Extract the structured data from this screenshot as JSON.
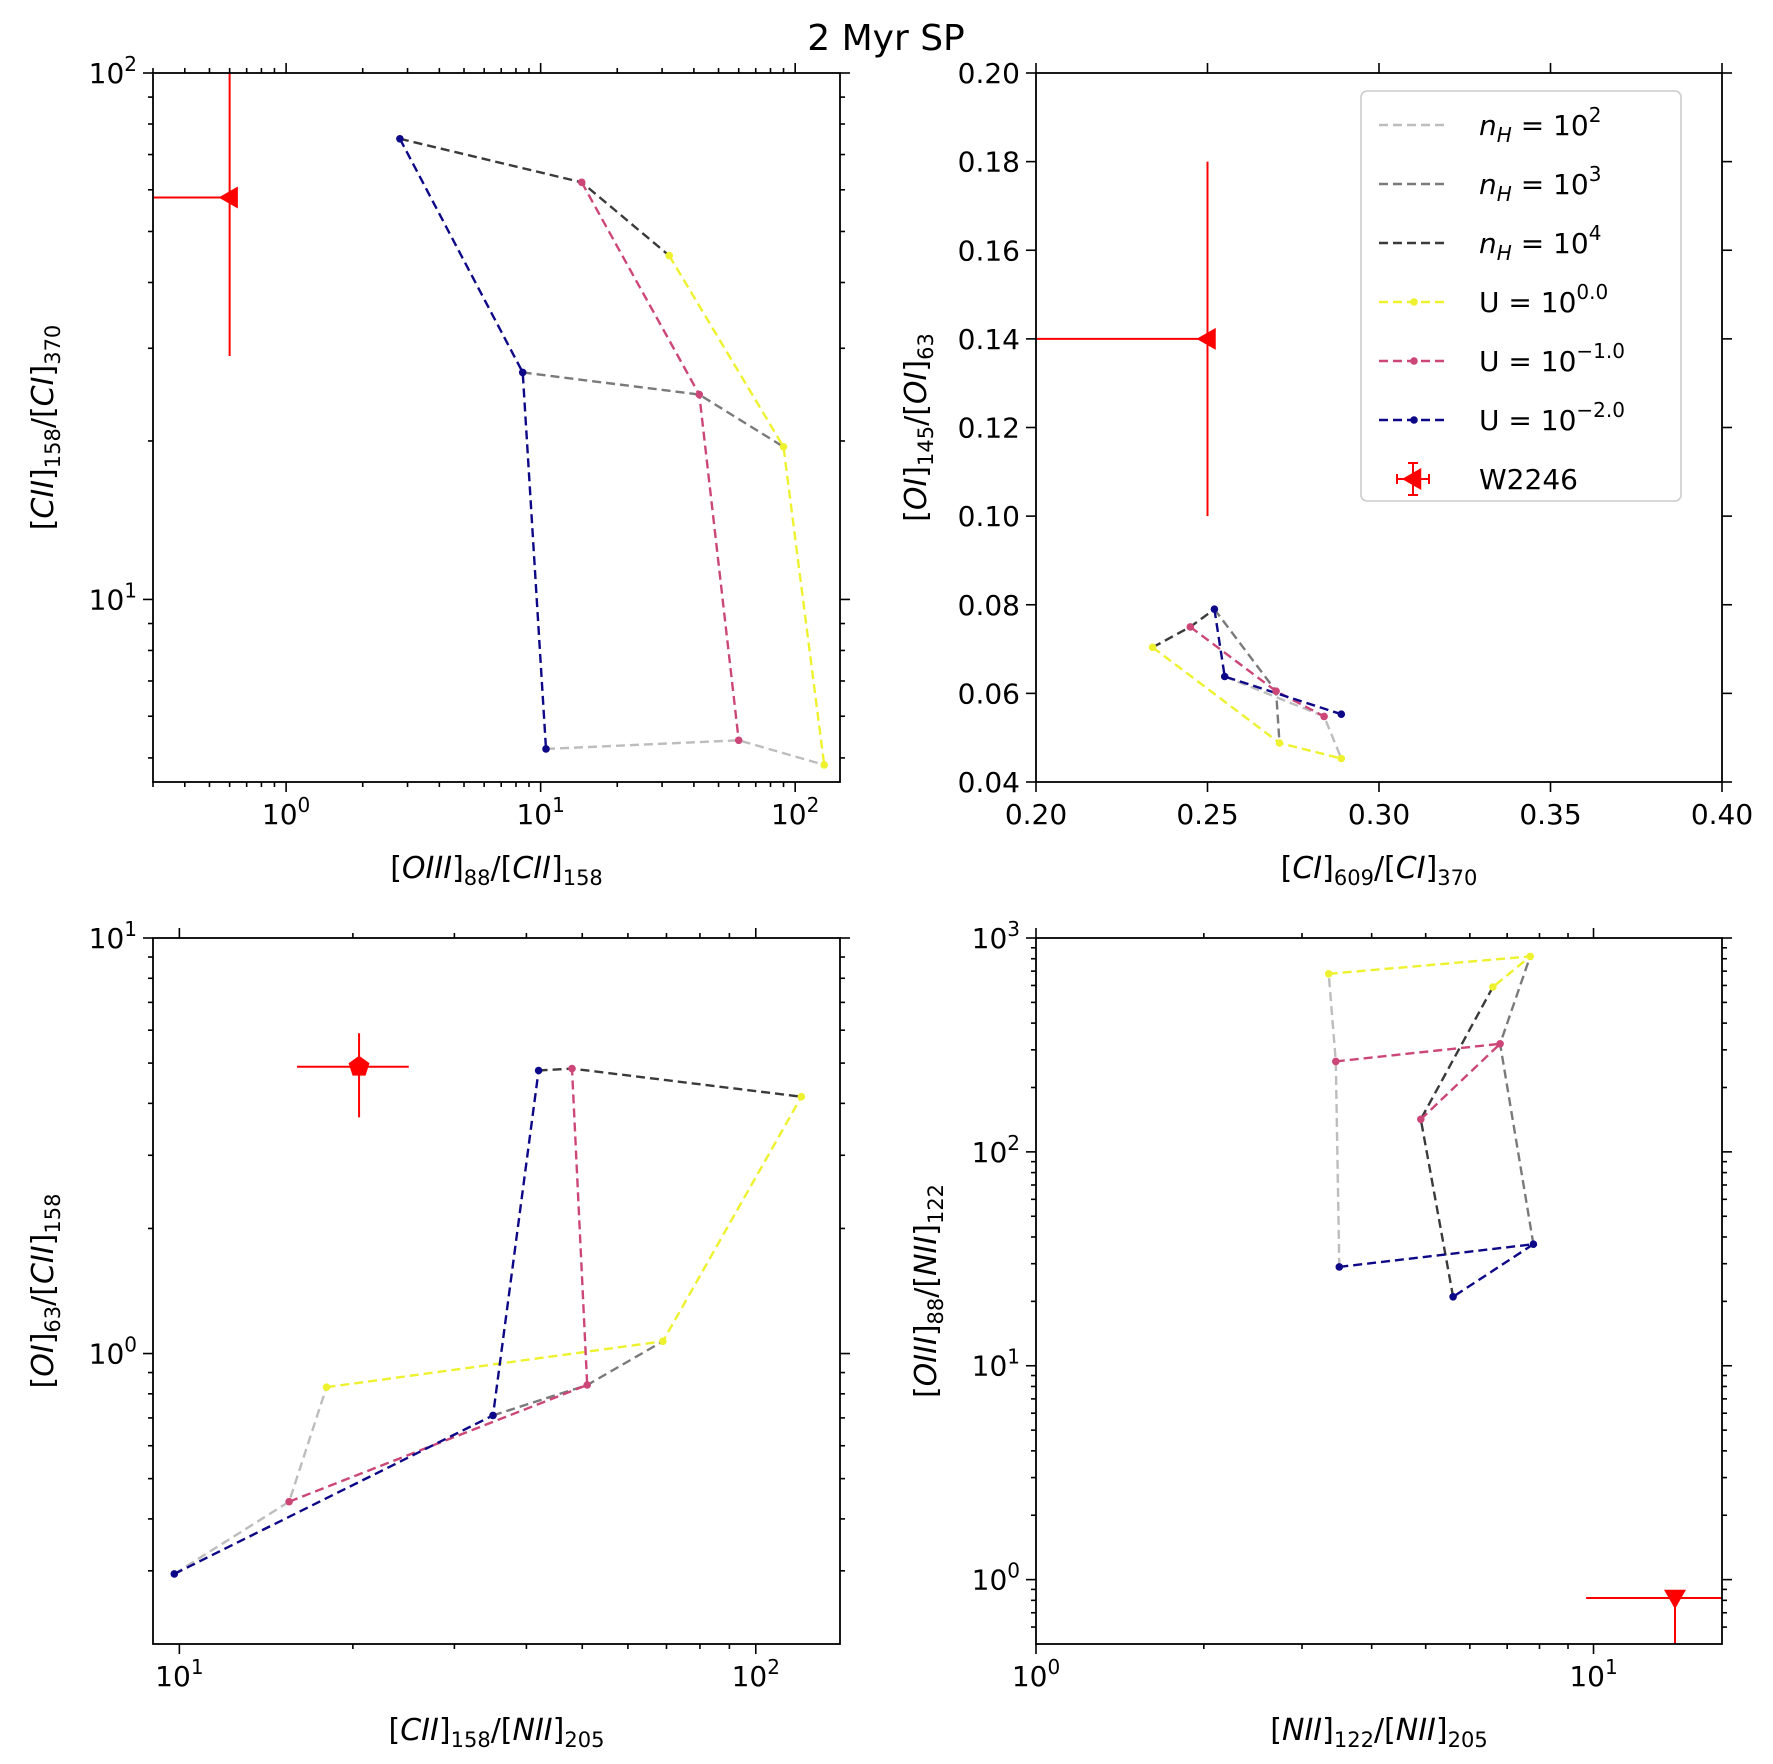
{
  "figure": {
    "title": "2 Myr SP"
  },
  "colors": {
    "nH2": "#bdbdbd",
    "nH3": "#7a7a7a",
    "nH4": "#3a3a3a",
    "U0": "#eef22e",
    "Um1": "#cc4778",
    "Um2": "#0d0887",
    "obs": "#ff0000",
    "axis": "#000000"
  },
  "legend": {
    "entries": [
      {
        "series": "nH2",
        "base": "n",
        "sub": "H",
        "mid": " = 10",
        "sup": "2",
        "marker": false
      },
      {
        "series": "nH3",
        "base": "n",
        "sub": "H",
        "mid": " = 10",
        "sup": "3",
        "marker": false
      },
      {
        "series": "nH4",
        "base": "n",
        "sub": "H",
        "mid": " = 10",
        "sup": "4",
        "marker": false
      },
      {
        "series": "U0",
        "base": "U = 10",
        "sup": "0.0",
        "marker": true
      },
      {
        "series": "Um1",
        "base": "U = 10",
        "sup": "−1.0",
        "marker": true
      },
      {
        "series": "Um2",
        "base": "U = 10",
        "sup": "−2.0",
        "marker": true
      },
      {
        "series": "obs",
        "base": "W2246",
        "obs": true
      }
    ]
  },
  "chart_data": [
    {
      "type": "line",
      "id": "p1",
      "xscale": "log",
      "yscale": "log",
      "xlim": [
        0.3,
        150
      ],
      "ylim": [
        4.5,
        100
      ],
      "xlabel": {
        "pre": "[",
        "it": "OIII",
        "sub1": "88",
        "mid": "/[",
        "it2": "CII",
        "sub2": "158"
      },
      "ylabel": {
        "pre": "[",
        "it": "CII",
        "sub1": "158",
        "mid": "/[",
        "it2": "CI",
        "sub2": "370"
      },
      "xticks": [
        {
          "v": 1,
          "b": "10",
          "e": "0"
        },
        {
          "v": 10,
          "b": "10",
          "e": "1"
        },
        {
          "v": 100,
          "b": "10",
          "e": "2"
        }
      ],
      "yticks": [
        {
          "v": 10,
          "b": "10",
          "e": "1"
        },
        {
          "v": 100,
          "b": "10",
          "e": "2"
        }
      ],
      "series": [
        {
          "name": "nH2",
          "x": [
            10.5,
            60,
            130
          ],
          "y": [
            5.2,
            5.4,
            4.85
          ]
        },
        {
          "name": "nH3",
          "x": [
            8.5,
            42,
            90
          ],
          "y": [
            27,
            24.5,
            19.5
          ]
        },
        {
          "name": "nH4",
          "x": [
            2.8,
            14.5,
            32
          ],
          "y": [
            75,
            62,
            45
          ]
        },
        {
          "name": "U0",
          "x": [
            32,
            90,
            130
          ],
          "y": [
            45,
            19.5,
            4.85
          ]
        },
        {
          "name": "Um1",
          "x": [
            14.5,
            42,
            60
          ],
          "y": [
            62,
            24.5,
            5.4
          ]
        },
        {
          "name": "Um2",
          "x": [
            2.8,
            8.5,
            10.5
          ],
          "y": [
            75,
            27,
            5.2
          ]
        }
      ],
      "observation": {
        "name": "W2246",
        "marker": "triangle-left",
        "x": 0.6,
        "y": 58,
        "xerr_lo": 0.3,
        "xerr_hi": 0,
        "yerr_lo": 29,
        "yerr_hi": 88
      }
    },
    {
      "type": "line",
      "id": "p2",
      "xscale": "linear",
      "yscale": "linear",
      "xlim": [
        0.2,
        0.4
      ],
      "ylim": [
        0.04,
        0.2
      ],
      "xlabel": {
        "pre": "[",
        "it": "CI",
        "sub1": "609",
        "mid": "/[",
        "it2": "CI",
        "sub2": "370"
      },
      "ylabel": {
        "pre": "[",
        "it": "OI",
        "sub1": "145",
        "mid": "/[",
        "it2": "OI",
        "sub2": "63"
      },
      "xticks": [
        {
          "v": 0.2,
          "t": "0.20"
        },
        {
          "v": 0.25,
          "t": "0.25"
        },
        {
          "v": 0.3,
          "t": "0.30"
        },
        {
          "v": 0.35,
          "t": "0.35"
        },
        {
          "v": 0.4,
          "t": "0.40"
        }
      ],
      "yticks": [
        {
          "v": 0.04,
          "t": "0.04"
        },
        {
          "v": 0.06,
          "t": "0.06"
        },
        {
          "v": 0.08,
          "t": "0.08"
        },
        {
          "v": 0.1,
          "t": "0.10"
        },
        {
          "v": 0.12,
          "t": "0.12"
        },
        {
          "v": 0.14,
          "t": "0.14"
        },
        {
          "v": 0.16,
          "t": "0.16"
        },
        {
          "v": 0.18,
          "t": "0.18"
        },
        {
          "v": 0.2,
          "t": "0.20"
        }
      ],
      "series": [
        {
          "name": "nH2",
          "x": [
            0.255,
            0.284,
            0.289
          ],
          "y": [
            0.0638,
            0.0548,
            0.0453
          ]
        },
        {
          "name": "nH3",
          "x": [
            0.252,
            0.27,
            0.271
          ],
          "y": [
            0.079,
            0.0605,
            0.0488
          ]
        },
        {
          "name": "nH4",
          "x": [
            0.234,
            0.245,
            0.252
          ],
          "y": [
            0.0704,
            0.075,
            0.079
          ]
        },
        {
          "name": "U0",
          "x": [
            0.234,
            0.271,
            0.289
          ],
          "y": [
            0.0704,
            0.0488,
            0.0453
          ]
        },
        {
          "name": "Um1",
          "x": [
            0.245,
            0.27,
            0.284
          ],
          "y": [
            0.075,
            0.0605,
            0.0548
          ]
        },
        {
          "name": "Um2",
          "x": [
            0.252,
            0.255,
            0.289
          ],
          "y": [
            0.079,
            0.0638,
            0.0553
          ]
        }
      ],
      "observation": {
        "name": "W2246",
        "marker": "triangle-left",
        "x": 0.25,
        "y": 0.14,
        "xerr_lo": 0.05,
        "xerr_hi": 0,
        "yerr_lo": 0.04,
        "yerr_hi": 0.04
      }
    },
    {
      "type": "line",
      "id": "p3",
      "xscale": "log",
      "yscale": "log",
      "xlim": [
        9,
        140
      ],
      "ylim": [
        0.2,
        10
      ],
      "xlabel": {
        "pre": "[",
        "it": "CII",
        "sub1": "158",
        "mid": "/[",
        "it2": "NII",
        "sub2": "205"
      },
      "ylabel": {
        "pre": "[",
        "it": "OI",
        "sub1": "63",
        "mid": "/[",
        "it2": "CII",
        "sub2": "158"
      },
      "xticks": [
        {
          "v": 10,
          "b": "10",
          "e": "1"
        },
        {
          "v": 100,
          "b": "10",
          "e": "2"
        }
      ],
      "yticks": [
        {
          "v": 1,
          "b": "10",
          "e": "0"
        },
        {
          "v": 10,
          "b": "10",
          "e": "1"
        }
      ],
      "series": [
        {
          "name": "nH2",
          "x": [
            9.8,
            15.5,
            18
          ],
          "y": [
            0.295,
            0.44,
            0.83
          ]
        },
        {
          "name": "nH3",
          "x": [
            35,
            51,
            69
          ],
          "y": [
            0.71,
            0.84,
            1.07
          ]
        },
        {
          "name": "nH4",
          "x": [
            42,
            48,
            120
          ],
          "y": [
            4.8,
            4.85,
            4.15
          ]
        },
        {
          "name": "U0",
          "x": [
            18,
            69,
            120
          ],
          "y": [
            0.83,
            1.07,
            4.15
          ]
        },
        {
          "name": "Um1",
          "x": [
            15.5,
            51,
            48
          ],
          "y": [
            0.44,
            0.84,
            4.85
          ]
        },
        {
          "name": "Um2",
          "x": [
            9.8,
            35,
            42
          ],
          "y": [
            0.295,
            0.71,
            4.8
          ]
        }
      ],
      "observation": {
        "name": "W2246",
        "marker": "pentagon",
        "x": 20.5,
        "y": 4.9,
        "xerr_lo": 4.5,
        "xerr_hi": 4.5,
        "yerr_lo": 1.2,
        "yerr_hi": 1.0
      }
    },
    {
      "type": "line",
      "id": "p4",
      "xscale": "log",
      "yscale": "log",
      "xlim": [
        1,
        17
      ],
      "ylim": [
        0.5,
        1000
      ],
      "xlabel": {
        "pre": "[",
        "it": "NII",
        "sub1": "122",
        "mid": "/[",
        "it2": "NII",
        "sub2": "205"
      },
      "ylabel": {
        "pre": "[",
        "it": "OIII",
        "sub1": "88",
        "mid": "/[",
        "it2": "NII",
        "sub2": "122"
      },
      "xticks": [
        {
          "v": 1,
          "b": "10",
          "e": "0"
        },
        {
          "v": 10,
          "b": "10",
          "e": "1"
        }
      ],
      "yticks": [
        {
          "v": 1,
          "b": "10",
          "e": "0"
        },
        {
          "v": 10,
          "b": "10",
          "e": "1"
        },
        {
          "v": 100,
          "b": "10",
          "e": "2"
        },
        {
          "v": 1000,
          "b": "10",
          "e": "3"
        }
      ],
      "series": [
        {
          "name": "nH2",
          "x": [
            3.5,
            3.45,
            3.35
          ],
          "y": [
            29,
            265,
            680
          ]
        },
        {
          "name": "nH3",
          "x": [
            7.8,
            6.8,
            7.7
          ],
          "y": [
            37,
            320,
            820
          ]
        },
        {
          "name": "nH4",
          "x": [
            5.6,
            4.9,
            6.6
          ],
          "y": [
            21,
            142,
            590
          ]
        },
        {
          "name": "U0",
          "x": [
            3.35,
            7.7,
            6.6
          ],
          "y": [
            680,
            820,
            590
          ]
        },
        {
          "name": "Um1",
          "x": [
            3.45,
            6.8,
            4.9
          ],
          "y": [
            265,
            320,
            142
          ]
        },
        {
          "name": "Um2",
          "x": [
            3.5,
            7.8,
            5.6
          ],
          "y": [
            29,
            37,
            21
          ]
        }
      ],
      "observation": {
        "name": "W2246",
        "marker": "triangle-down",
        "x": 14,
        "y": 0.82,
        "xerr_lo": 4.3,
        "xerr_hi": 4,
        "yerr_lo": 0.32,
        "yerr_hi": 0
      }
    }
  ]
}
